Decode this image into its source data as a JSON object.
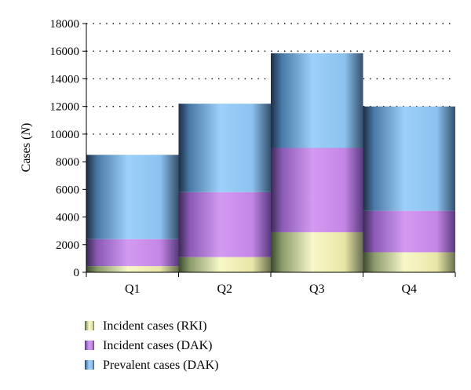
{
  "chart_data": {
    "type": "bar",
    "stacked": true,
    "categories": [
      "Q1",
      "Q2",
      "Q3",
      "Q4"
    ],
    "series": [
      {
        "name": "Incident cases (RKI)",
        "values": [
          450,
          1100,
          2900,
          1450
        ],
        "color": "#f2f0b8"
      },
      {
        "name": "Incident cases (DAK)",
        "values": [
          1950,
          4700,
          6100,
          3000
        ],
        "color": "#c88ae6"
      },
      {
        "name": "Prevalent cases (DAK)",
        "values": [
          6100,
          6400,
          6850,
          7550
        ],
        "color": "#8dc4f0"
      }
    ],
    "totals": [
      8500,
      12200,
      15850,
      12000
    ],
    "ylabel_prefix": "Cases (",
    "ylabel_var": "N",
    "ylabel_suffix": ")",
    "ylim": [
      0,
      18000
    ],
    "yticks": [
      "0",
      "2000",
      "4000",
      "6000",
      "8000",
      "10000",
      "12000",
      "14000",
      "16000",
      "18000"
    ],
    "grid": "dotted horizontal",
    "legend_position": "bottom"
  }
}
